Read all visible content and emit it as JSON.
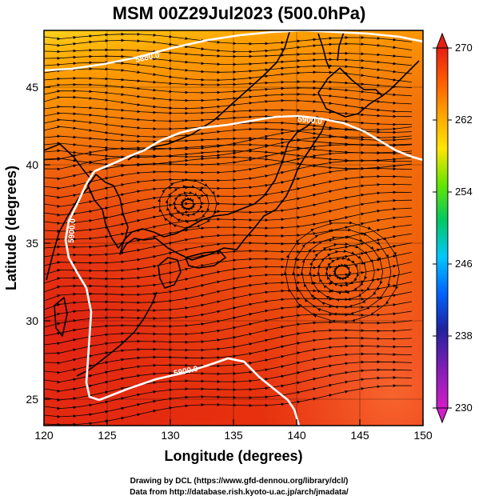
{
  "title": "MSM 00Z29Jul2023 (500.0hPa)",
  "xlabel": "Longitude (degrees)",
  "ylabel": "Latitude  (degrees)",
  "x_ticks": [
    "120",
    "125",
    "130",
    "135",
    "140",
    "145",
    "150"
  ],
  "y_ticks": [
    "25",
    "30",
    "35",
    "40",
    "45"
  ],
  "colorbar": {
    "ticks": [
      "270",
      "262",
      "254",
      "246",
      "238",
      "230"
    ],
    "min": 230,
    "max": 270,
    "colors": [
      "#d21ec8",
      "#1e23a0",
      "#0064ff",
      "#00c8ff",
      "#00c864",
      "#64e600",
      "#ffe600",
      "#ffa000",
      "#ff5a00",
      "#e61e14",
      "#e61e14"
    ]
  },
  "contour_labels": [
    {
      "text": "5880.0"
    },
    {
      "text": "5900.0"
    },
    {
      "text": "5900.0"
    },
    {
      "text": "5900.0"
    }
  ],
  "credits": {
    "line1": "Drawing by DCL (https://www.gfd-dennou.org/library/dcl/)",
    "line2": "Data from http://database.rish.kyoto-u.ac.jp/arch/jmadata/"
  },
  "colors": {
    "field_warm": "#e8320c",
    "field_cool": "#ffd21e",
    "contour": "#ffffff",
    "coast": "#000000"
  }
}
